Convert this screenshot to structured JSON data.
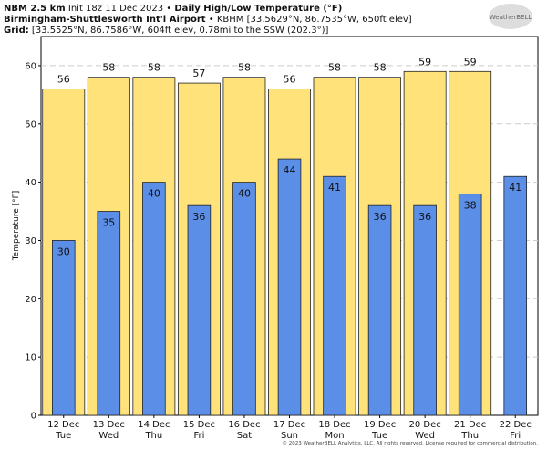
{
  "chart_data": {
    "type": "bar",
    "model": "NBM 2.5 km",
    "init": "Init 18z 11 Dec 2023 •",
    "title": "Daily High/Low Temperature (°F)",
    "station": "Birmingham-Shuttlesworth Int'l Airport",
    "station_info": "• KBHM [33.5629°N, 86.7535°W, 650ft elev]",
    "grid_label": "Grid:",
    "grid_info": "[33.5525°N, 86.7586°W, 604ft elev, 0.78mi to the SSW (202.3°)]",
    "logo": "WeatherBELL",
    "ylabel": "Temperature [°F]",
    "footer": "© 2023 WeatherBELL Analytics, LLC. All rights reserved. License required for commercial distribution.",
    "categories": [
      "12 Dec",
      "13 Dec",
      "14 Dec",
      "15 Dec",
      "16 Dec",
      "17 Dec",
      "18 Dec",
      "19 Dec",
      "20 Dec",
      "21 Dec",
      "22 Dec"
    ],
    "weekdays": [
      "Tue",
      "Wed",
      "Thu",
      "Fri",
      "Sat",
      "Sun",
      "Mon",
      "Tue",
      "Wed",
      "Thu",
      "Fri"
    ],
    "series": [
      {
        "name": "High",
        "color": "#ffe37a",
        "values": [
          56,
          58,
          58,
          57,
          58,
          56,
          58,
          58,
          59,
          59,
          null
        ]
      },
      {
        "name": "Low",
        "color": "#5b8ee6",
        "values": [
          30,
          35,
          40,
          36,
          40,
          44,
          41,
          36,
          36,
          38,
          41
        ]
      }
    ],
    "ylim": [
      0,
      65
    ],
    "yticks": [
      0,
      10,
      20,
      30,
      40,
      50,
      60
    ],
    "grid": true
  }
}
